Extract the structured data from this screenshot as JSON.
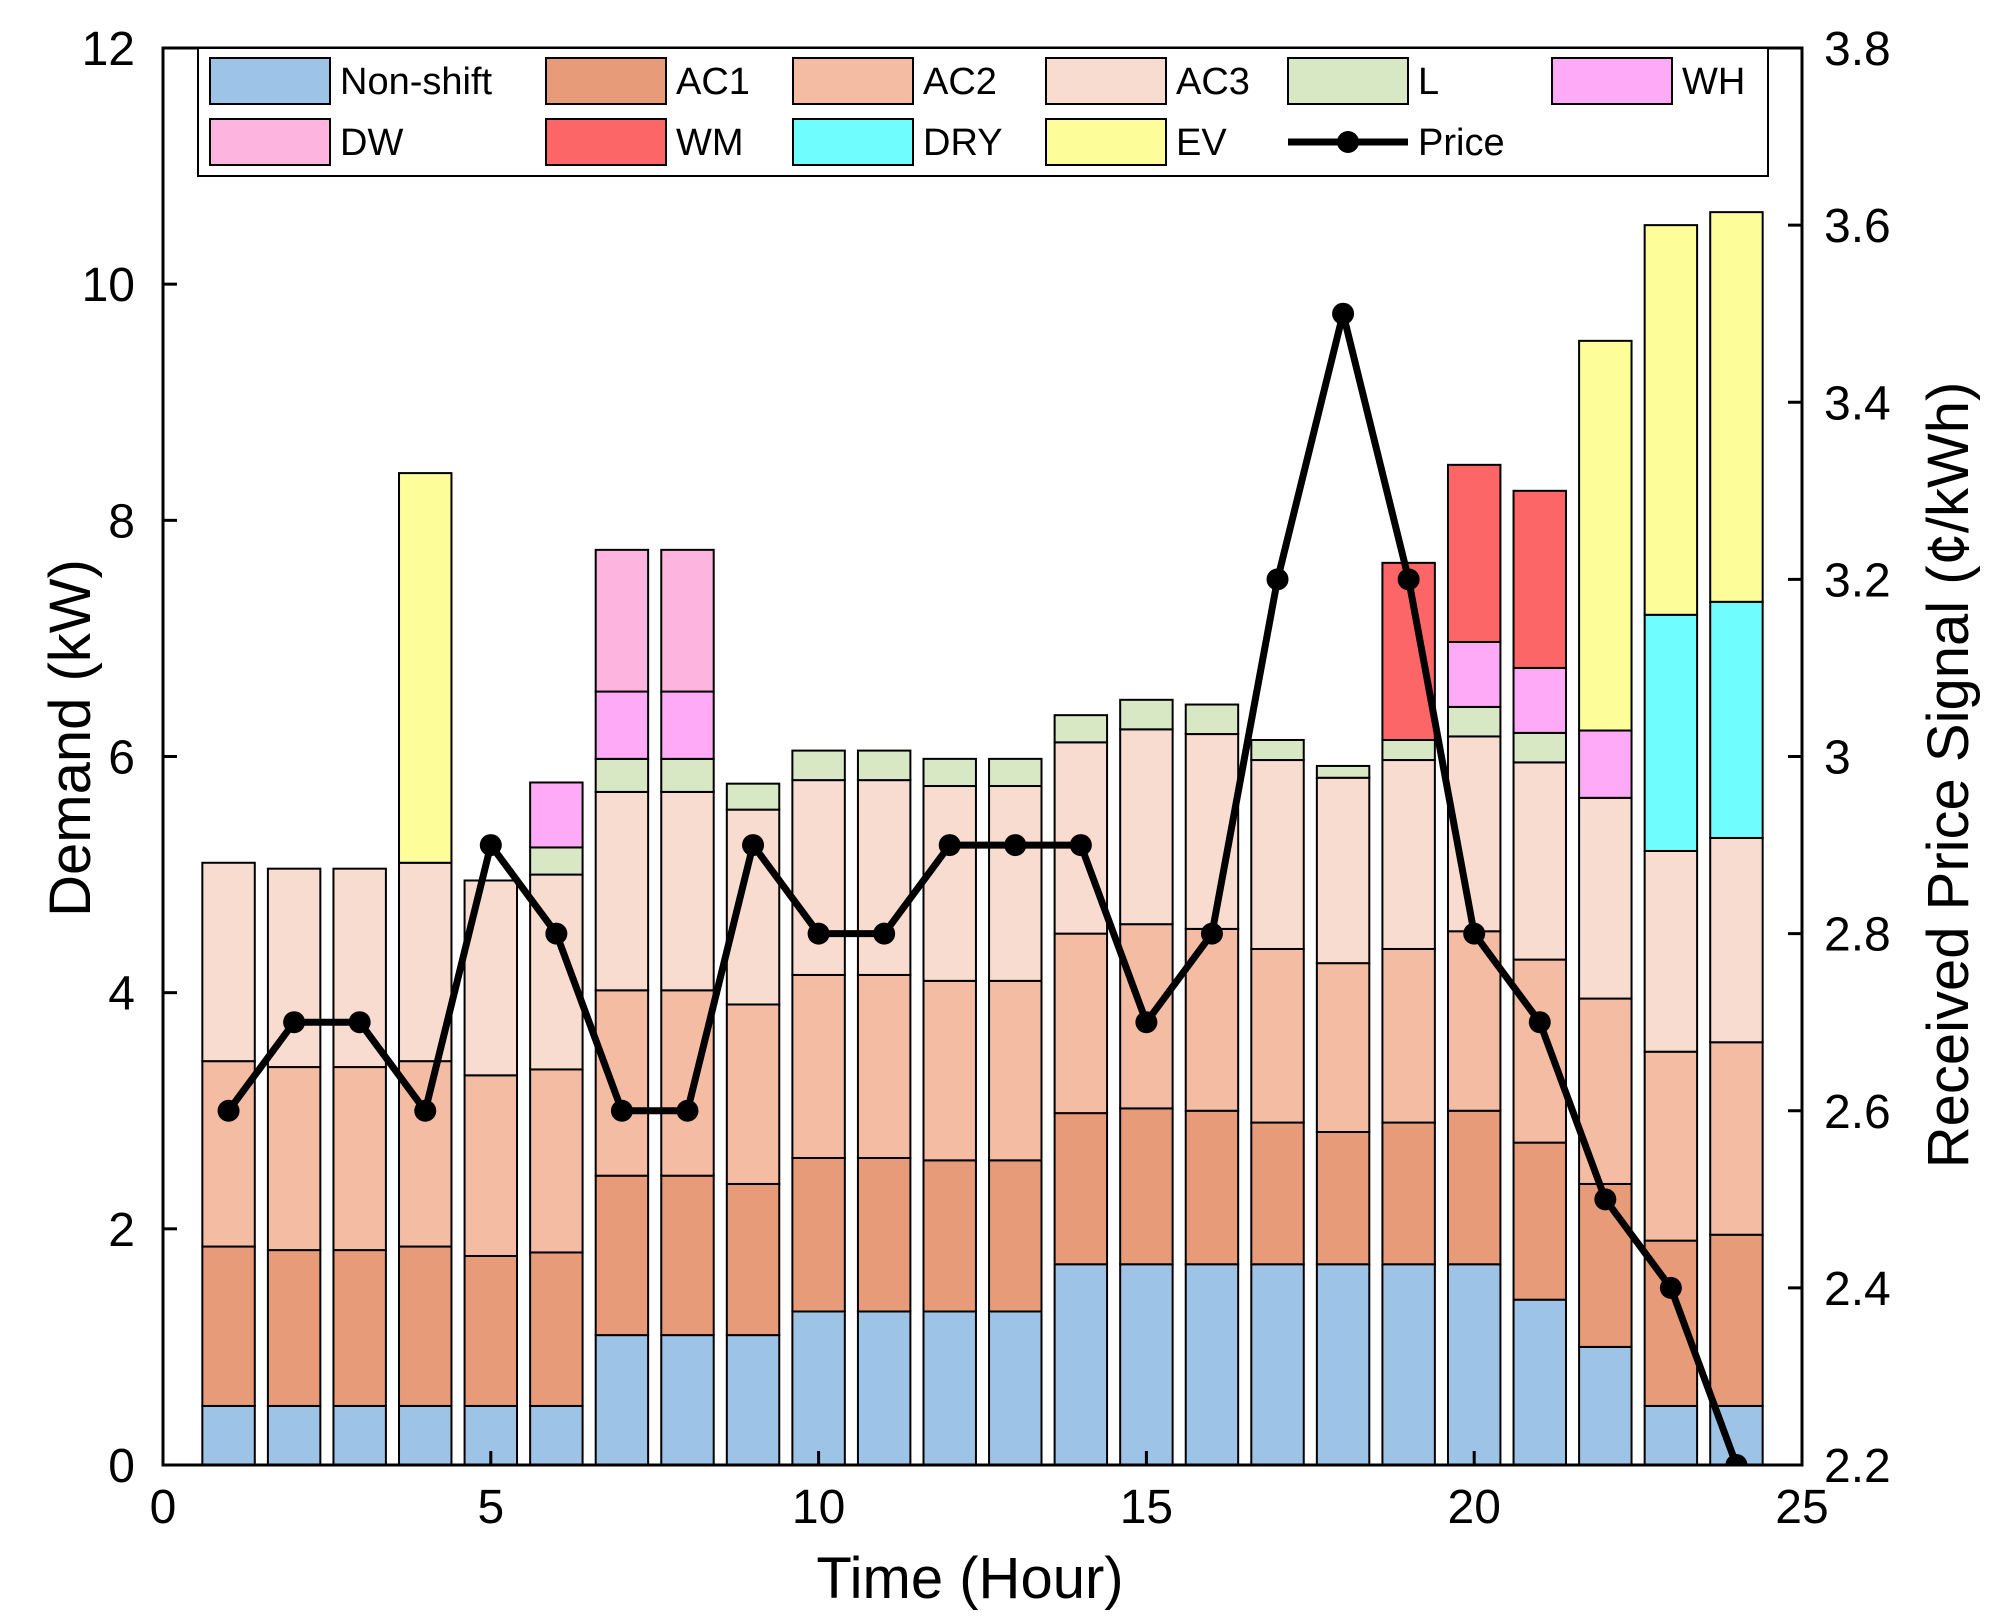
{
  "chart_data": {
    "type": "bar",
    "subtype": "stacked-bar-with-line",
    "xlabel": "Time (Hour)",
    "ylabel_left": "Demand (kW)",
    "ylabel_right": "Received Price Signal (¢/kWh)",
    "xlim": [
      0,
      25
    ],
    "ylim_left": [
      0,
      12
    ],
    "ylim_right": [
      2.2,
      3.8
    ],
    "x_ticks": [
      "0",
      "5",
      "10",
      "15",
      "20",
      "25"
    ],
    "y_left_ticks": [
      "0",
      "2",
      "4",
      "6",
      "8",
      "10",
      "12"
    ],
    "y_right_ticks": [
      "2.2",
      "2.4",
      "2.6",
      "2.8",
      "3",
      "3.2",
      "3.4",
      "3.6",
      "3.8"
    ],
    "hours": [
      1,
      2,
      3,
      4,
      5,
      6,
      7,
      8,
      9,
      10,
      11,
      12,
      13,
      14,
      15,
      16,
      17,
      18,
      19,
      20,
      21,
      22,
      23,
      24
    ],
    "series": [
      {
        "name": "Non-shift",
        "color": "#9dc3e6",
        "values": [
          0.5,
          0.5,
          0.5,
          0.5,
          0.5,
          0.5,
          1.1,
          1.1,
          1.1,
          1.3,
          1.3,
          1.3,
          1.3,
          1.7,
          1.7,
          1.7,
          1.7,
          1.7,
          1.7,
          1.7,
          1.4,
          1.0,
          0.5,
          0.5
        ]
      },
      {
        "name": "AC1",
        "color": "#e89b78",
        "values": [
          1.35,
          1.32,
          1.32,
          1.35,
          1.27,
          1.3,
          1.35,
          1.35,
          1.28,
          1.3,
          1.3,
          1.28,
          1.28,
          1.28,
          1.32,
          1.3,
          1.2,
          1.12,
          1.2,
          1.3,
          1.33,
          1.38,
          1.4,
          1.45
        ]
      },
      {
        "name": "AC2",
        "color": "#f3bca3",
        "values": [
          1.57,
          1.55,
          1.55,
          1.57,
          1.53,
          1.55,
          1.57,
          1.57,
          1.52,
          1.55,
          1.55,
          1.52,
          1.52,
          1.52,
          1.56,
          1.54,
          1.47,
          1.43,
          1.47,
          1.52,
          1.55,
          1.57,
          1.6,
          1.63
        ]
      },
      {
        "name": "AC3",
        "color": "#f8dcd0",
        "values": [
          1.68,
          1.68,
          1.68,
          1.68,
          1.65,
          1.65,
          1.68,
          1.68,
          1.65,
          1.65,
          1.65,
          1.65,
          1.65,
          1.62,
          1.65,
          1.65,
          1.6,
          1.57,
          1.6,
          1.65,
          1.67,
          1.7,
          1.7,
          1.73
        ]
      },
      {
        "name": "L",
        "color": "#d8e7c4",
        "values": [
          0,
          0,
          0,
          0,
          0,
          0.23,
          0.28,
          0.28,
          0.22,
          0.25,
          0.25,
          0.23,
          0.23,
          0.23,
          0.25,
          0.25,
          0.17,
          0.1,
          0.17,
          0.25,
          0.25,
          0,
          0,
          0
        ]
      },
      {
        "name": "WH",
        "color": "#ffaaf7",
        "values": [
          0,
          0,
          0,
          0,
          0,
          0.55,
          0.57,
          0.57,
          0,
          0,
          0,
          0,
          0,
          0,
          0,
          0,
          0,
          0,
          0,
          0.55,
          0.55,
          0.57,
          0,
          0
        ]
      },
      {
        "name": "DW",
        "color": "#fdb4de",
        "values": [
          0,
          0,
          0,
          0,
          0,
          0,
          1.2,
          1.2,
          0,
          0,
          0,
          0,
          0,
          0,
          0,
          0,
          0,
          0,
          0,
          0,
          0,
          0,
          0,
          0
        ]
      },
      {
        "name": "WM",
        "color": "#fd6666",
        "values": [
          0,
          0,
          0,
          0,
          0,
          0,
          0,
          0,
          0,
          0,
          0,
          0,
          0,
          0,
          0,
          0,
          0,
          0,
          1.5,
          1.5,
          1.5,
          0,
          0,
          0
        ]
      },
      {
        "name": "DRY",
        "color": "#70fdfd",
        "values": [
          0,
          0,
          0,
          0,
          0,
          0,
          0,
          0,
          0,
          0,
          0,
          0,
          0,
          0,
          0,
          0,
          0,
          0,
          0,
          0,
          0,
          0,
          2.0,
          2.0
        ]
      },
      {
        "name": "EV",
        "color": "#fdfd99",
        "values": [
          0,
          0,
          0,
          3.3,
          0,
          0,
          0,
          0,
          0,
          0,
          0,
          0,
          0,
          0,
          0,
          0,
          0,
          0,
          0,
          0,
          0,
          3.3,
          3.3,
          3.3
        ]
      }
    ],
    "price": {
      "name": "Price",
      "color": "#000000",
      "values": [
        2.6,
        2.7,
        2.7,
        2.6,
        2.9,
        2.8,
        2.6,
        2.6,
        2.9,
        2.8,
        2.8,
        2.9,
        2.9,
        2.9,
        2.7,
        2.8,
        3.2,
        3.5,
        3.2,
        2.8,
        2.7,
        2.5,
        2.4,
        2.2
      ]
    },
    "legend": {
      "position": "top",
      "entries": [
        "Non-shift",
        "AC1",
        "AC2",
        "AC3",
        "L",
        "WH",
        "DW",
        "WM",
        "DRY",
        "EV",
        "Price"
      ]
    }
  }
}
